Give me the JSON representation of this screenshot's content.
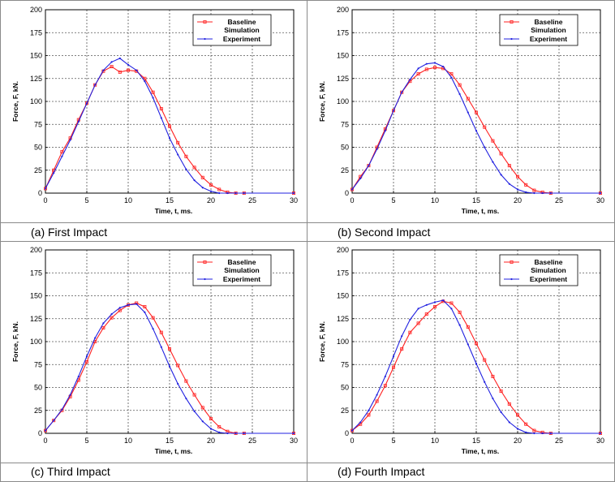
{
  "chart_data": [
    {
      "type": "line",
      "caption": "(a)  First Impact",
      "xlabel": "Time, t, ms.",
      "ylabel": "Force, F, kN.",
      "xlim": [
        0,
        30
      ],
      "ylim": [
        0,
        200
      ],
      "xticks": [
        "0",
        "5",
        "10",
        "15",
        "20",
        "25",
        "30"
      ],
      "yticks": [
        "0",
        "25",
        "50",
        "75",
        "100",
        "125",
        "150",
        "175",
        "200"
      ],
      "grid": true,
      "legend_position": "top-right",
      "legend_labels": [
        "Baseline",
        "Simulation",
        "Experiment"
      ],
      "series": [
        {
          "name": "Baseline Simulation",
          "color": "#ff2020",
          "marker": "square",
          "x": [
            0,
            1,
            2,
            3,
            4,
            5,
            6,
            7,
            8,
            9,
            10,
            11,
            12,
            13,
            14,
            15,
            16,
            17,
            18,
            19,
            20,
            21,
            22,
            23,
            24,
            30
          ],
          "y": [
            5,
            25,
            45,
            60,
            80,
            98,
            118,
            133,
            138,
            132,
            134,
            133,
            125,
            110,
            92,
            73,
            55,
            40,
            28,
            17,
            9,
            4,
            1,
            0,
            0,
            0
          ]
        },
        {
          "name": "Experiment",
          "color": "#2020e0",
          "marker": "dot",
          "x": [
            0,
            1,
            2,
            3,
            4,
            5,
            6,
            7,
            8,
            9,
            10,
            11,
            12,
            13,
            14,
            15,
            16,
            17,
            18,
            19,
            20,
            21,
            22,
            23,
            24,
            30
          ],
          "y": [
            5,
            22,
            40,
            58,
            78,
            98,
            118,
            134,
            143,
            147,
            140,
            134,
            122,
            104,
            82,
            60,
            42,
            26,
            14,
            6,
            2,
            0,
            0,
            0,
            0,
            0
          ]
        }
      ]
    },
    {
      "type": "line",
      "caption": "(b)  Second Impact",
      "xlabel": "Time, t, ms.",
      "ylabel": "Force, F, kN.",
      "xlim": [
        0,
        30
      ],
      "ylim": [
        0,
        200
      ],
      "xticks": [
        "0",
        "5",
        "10",
        "15",
        "20",
        "25",
        "30"
      ],
      "yticks": [
        "0",
        "25",
        "50",
        "75",
        "100",
        "125",
        "150",
        "175",
        "200"
      ],
      "grid": true,
      "legend_position": "top-right",
      "legend_labels": [
        "Baseline",
        "Simulation",
        "Experiment"
      ],
      "series": [
        {
          "name": "Baseline Simulation",
          "color": "#ff2020",
          "marker": "square",
          "x": [
            0,
            1,
            2,
            3,
            4,
            5,
            6,
            7,
            8,
            9,
            10,
            11,
            12,
            13,
            14,
            15,
            16,
            17,
            18,
            19,
            20,
            21,
            22,
            23,
            24,
            30
          ],
          "y": [
            4,
            18,
            30,
            50,
            70,
            90,
            110,
            122,
            130,
            135,
            137,
            136,
            130,
            118,
            103,
            88,
            72,
            57,
            43,
            30,
            18,
            9,
            3,
            1,
            0,
            0
          ]
        },
        {
          "name": "Experiment",
          "color": "#2020e0",
          "marker": "dot",
          "x": [
            0,
            1,
            2,
            3,
            4,
            5,
            6,
            7,
            8,
            9,
            10,
            11,
            12,
            13,
            14,
            15,
            16,
            17,
            18,
            19,
            20,
            21,
            22,
            23,
            24,
            30
          ],
          "y": [
            4,
            16,
            30,
            48,
            68,
            90,
            110,
            124,
            136,
            141,
            142,
            138,
            126,
            108,
            88,
            68,
            50,
            34,
            20,
            10,
            4,
            1,
            0,
            0,
            0,
            0
          ]
        }
      ]
    },
    {
      "type": "line",
      "caption": "(c)  Third Impact",
      "xlabel": "Time, t, ms.",
      "ylabel": "Force, F, kN.",
      "xlim": [
        0,
        30
      ],
      "ylim": [
        0,
        200
      ],
      "xticks": [
        "0",
        "5",
        "10",
        "15",
        "20",
        "25",
        "30"
      ],
      "yticks": [
        "0",
        "25",
        "50",
        "75",
        "100",
        "125",
        "150",
        "175",
        "200"
      ],
      "grid": true,
      "legend_position": "top-right",
      "legend_labels": [
        "Baseline",
        "Simulation",
        "Experiment"
      ],
      "series": [
        {
          "name": "Baseline Simulation",
          "color": "#ff2020",
          "marker": "square",
          "x": [
            0,
            1,
            2,
            3,
            4,
            5,
            6,
            7,
            8,
            9,
            10,
            11,
            12,
            13,
            14,
            15,
            16,
            17,
            18,
            19,
            20,
            21,
            22,
            23,
            24,
            30
          ],
          "y": [
            3,
            14,
            25,
            40,
            58,
            78,
            100,
            115,
            126,
            134,
            140,
            142,
            138,
            126,
            110,
            92,
            74,
            57,
            42,
            28,
            16,
            7,
            2,
            0,
            0,
            0
          ]
        },
        {
          "name": "Experiment",
          "color": "#2020e0",
          "marker": "dot",
          "x": [
            0,
            1,
            2,
            3,
            4,
            5,
            6,
            7,
            8,
            9,
            10,
            11,
            12,
            13,
            14,
            15,
            16,
            17,
            18,
            19,
            20,
            21,
            22,
            23,
            24,
            30
          ],
          "y": [
            3,
            14,
            26,
            42,
            62,
            84,
            104,
            120,
            130,
            137,
            140,
            141,
            132,
            114,
            94,
            73,
            54,
            38,
            24,
            13,
            5,
            1,
            0,
            0,
            0,
            0
          ]
        }
      ]
    },
    {
      "type": "line",
      "caption": "(d)  Fourth Impact",
      "xlabel": "Time, t, ms.",
      "ylabel": "Force, F, kN.",
      "xlim": [
        0,
        30
      ],
      "ylim": [
        0,
        200
      ],
      "xticks": [
        "0",
        "5",
        "10",
        "15",
        "20",
        "25",
        "30"
      ],
      "yticks": [
        "0",
        "25",
        "50",
        "75",
        "100",
        "125",
        "150",
        "175",
        "200"
      ],
      "grid": true,
      "legend_position": "top-right",
      "legend_labels": [
        "Baseline",
        "Simulation",
        "Experiment"
      ],
      "series": [
        {
          "name": "Baseline Simulation",
          "color": "#ff2020",
          "marker": "square",
          "x": [
            0,
            1,
            2,
            3,
            4,
            5,
            6,
            7,
            8,
            9,
            10,
            11,
            12,
            13,
            14,
            15,
            16,
            17,
            18,
            19,
            20,
            21,
            22,
            23,
            24,
            30
          ],
          "y": [
            3,
            10,
            20,
            35,
            52,
            72,
            92,
            110,
            120,
            130,
            138,
            144,
            142,
            132,
            116,
            98,
            80,
            62,
            46,
            32,
            20,
            10,
            3,
            1,
            0,
            0
          ]
        },
        {
          "name": "Experiment",
          "color": "#2020e0",
          "marker": "dot",
          "x": [
            0,
            1,
            2,
            3,
            4,
            5,
            6,
            7,
            8,
            9,
            10,
            11,
            12,
            13,
            14,
            15,
            16,
            17,
            18,
            19,
            20,
            21,
            22,
            23,
            24,
            30
          ],
          "y": [
            3,
            12,
            25,
            42,
            62,
            84,
            106,
            124,
            136,
            140,
            143,
            145,
            136,
            118,
            97,
            76,
            56,
            38,
            23,
            12,
            5,
            1,
            0,
            0,
            0,
            0
          ]
        }
      ]
    }
  ]
}
